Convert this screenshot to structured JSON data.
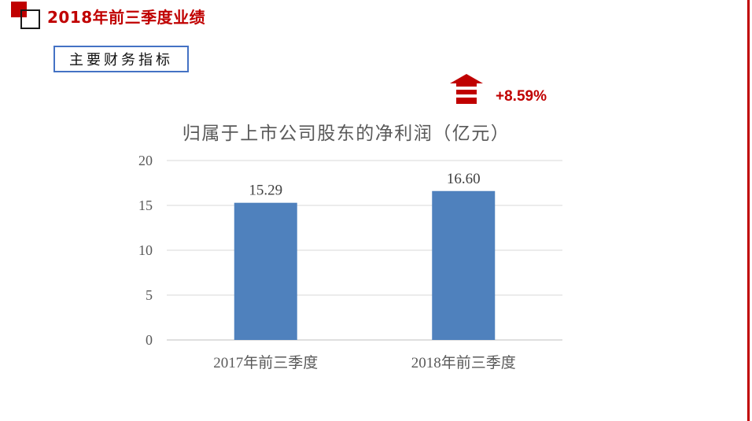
{
  "header": {
    "title": "2018年前三季度业绩",
    "accent_color": "#c00000"
  },
  "section": {
    "label": "主要财务指标",
    "border_color": "#4472c4"
  },
  "growth": {
    "text": "+8.59%",
    "icon": "up-arrow-icon",
    "color": "#c00000"
  },
  "chart_data": {
    "type": "bar",
    "title": "归属于上市公司股东的净利润（亿元）",
    "categories": [
      "2017年前三季度",
      "2018年前三季度"
    ],
    "values": [
      15.29,
      16.6
    ],
    "value_labels": [
      "15.29",
      "16.60"
    ],
    "ylim": [
      0,
      20
    ],
    "yticks": [
      "0",
      "5",
      "10",
      "15",
      "20"
    ],
    "grid": true,
    "legend": "none",
    "bar_color": "#4f81bd"
  }
}
